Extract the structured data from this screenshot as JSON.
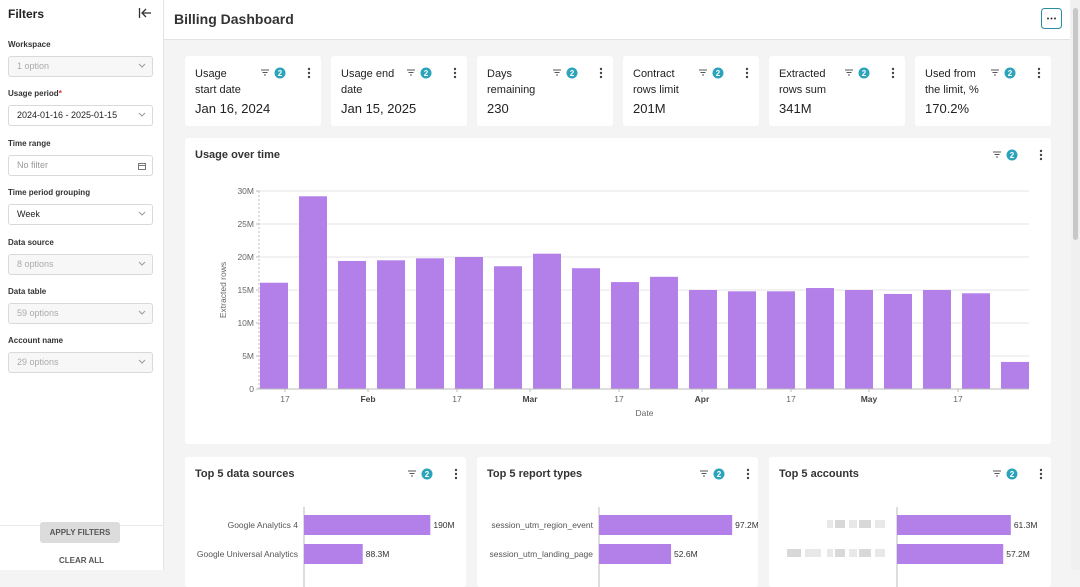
{
  "sidebar": {
    "title": "Filters",
    "filters": [
      {
        "label": "Workspace",
        "value": "1 option",
        "disabled": true
      },
      {
        "label": "Usage period",
        "required_mark": "*",
        "value": "2024-01-16 - 2025-01-15"
      },
      {
        "label": "Time range",
        "value": "No filter",
        "placeholder": true,
        "icon": "calendar"
      },
      {
        "label": "Time period grouping",
        "value": "Week"
      },
      {
        "label": "Data source",
        "value": "8 options",
        "disabled": true
      },
      {
        "label": "Data table",
        "value": "59 options",
        "disabled": true
      },
      {
        "label": "Account name",
        "value": "29 options",
        "disabled": true
      }
    ],
    "apply_button": "APPLY FILTERS",
    "clear_button": "CLEAR ALL"
  },
  "header": {
    "title": "Billing Dashboard"
  },
  "kpis": [
    {
      "label": "Usage\nstart date",
      "value": "Jan 16, 2024",
      "filters": 2
    },
    {
      "label": "Usage end\ndate",
      "value": "Jan 15, 2025",
      "filters": 2
    },
    {
      "label": "Days\nremaining",
      "value": "230",
      "filters": 2
    },
    {
      "label": "Contract\nrows limit",
      "value": "201M",
      "filters": 2
    },
    {
      "label": "Extracted\nrows sum",
      "value": "341M",
      "filters": 2
    },
    {
      "label": "Used from\nthe limit, %",
      "value": "170.2%",
      "filters": 2
    }
  ],
  "chart_data": [
    {
      "type": "bar",
      "title": "Usage over time",
      "filters": 2,
      "y_label": "Extracted rows",
      "x_label": "Date",
      "categories": [
        null,
        null,
        null,
        null,
        null,
        null,
        null,
        null,
        null,
        null,
        null,
        null,
        null,
        null,
        null,
        null,
        null,
        null,
        null,
        null
      ],
      "x_tick_labels": [
        "17",
        "Feb",
        "17",
        "Mar",
        "17",
        "Apr",
        "17",
        "May",
        "17"
      ],
      "values": [
        16100000,
        29200000,
        19400000,
        19500000,
        19800000,
        20000000,
        18600000,
        20500000,
        18300000,
        16200000,
        17000000,
        15000000,
        14800000,
        14800000,
        15300000,
        15000000,
        14400000,
        15000000,
        14500000,
        4100000
      ],
      "color": "#b380e9",
      "ylim": [
        0,
        30000000
      ],
      "yticks": [
        0,
        {
          "value": 5000000,
          "label": "5M"
        },
        {
          "value": 10000000,
          "label": "10M"
        },
        {
          "value": 15000000,
          "label": "15M"
        },
        {
          "value": 20000000,
          "label": "20M"
        },
        {
          "value": 25000000,
          "label": "25M"
        },
        {
          "value": 30000000,
          "label": "30M"
        }
      ],
      "grid": true
    },
    {
      "type": "bar",
      "orientation": "horizontal",
      "title": "Top 5 data sources",
      "filters": 2,
      "categories": [
        "Google Analytics 4",
        "Google Universal Analytics"
      ],
      "values": [
        190000000,
        88300000
      ],
      "value_labels": [
        "190M",
        "88.3M"
      ],
      "color": "#b380e9",
      "xlim": [
        0,
        200000000
      ]
    },
    {
      "type": "bar",
      "orientation": "horizontal",
      "title": "Top 5 report types",
      "filters": 2,
      "categories": [
        "session_utm_region_event",
        "session_utm_landing_page"
      ],
      "values": [
        97200000,
        52600000
      ],
      "value_labels": [
        "97.2M",
        "52.6M"
      ],
      "color": "#b380e9",
      "xlim": [
        0,
        100000000
      ]
    },
    {
      "type": "bar",
      "orientation": "horizontal",
      "title": "Top 5 accounts",
      "filters": 2,
      "categories": [
        null,
        null
      ],
      "values": [
        61300000,
        57200000
      ],
      "value_labels": [
        "61.3M",
        "57.2M"
      ],
      "color": "#b380e9",
      "xlim": [
        0,
        70000000
      ]
    }
  ]
}
